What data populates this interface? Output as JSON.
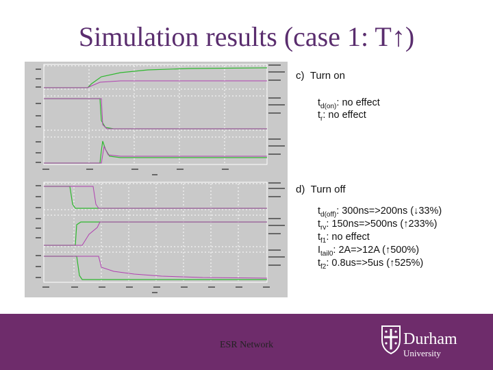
{
  "title": "Simulation results (case 1: T↑)",
  "section_c": {
    "heading": "c)  Turn on",
    "line1_main": "t",
    "line1_sub": "d(on)",
    "line1_tail": ": no effect",
    "line2_main": "t",
    "line2_sub": "r",
    "line2_tail": ": no effect"
  },
  "section_d": {
    "heading": "d)  Turn off",
    "line1_main": "t",
    "line1_sub": "d(off)",
    "line1_tail": ": 300ns=>200ns (↓33%)",
    "line2_main": "t",
    "line2_sub": "rv",
    "line2_tail": ": 150ns=>500ns (↑233%)",
    "line3_main": "t",
    "line3_sub": "f1",
    "line3_tail": ": no effect",
    "line4_main": "I",
    "line4_sub": "tail0",
    "line4_tail": ": 2A=>12A (↑500%)",
    "line5_main": "t",
    "line5_sub": "f2",
    "line5_tail": ": 0.8us=>5us (↑525%)"
  },
  "footer": {
    "text": "ESR Network",
    "logo_line1": "Durham",
    "logo_line2": "University"
  },
  "colors": {
    "title": "#5a2d6e",
    "footer_bg": "#6e2c6b",
    "trace_green": "#2eb82e",
    "trace_magenta": "#b040b0",
    "plot_bg": "#c9c9c9"
  },
  "icons": {
    "crest": "durham-crest-icon"
  }
}
